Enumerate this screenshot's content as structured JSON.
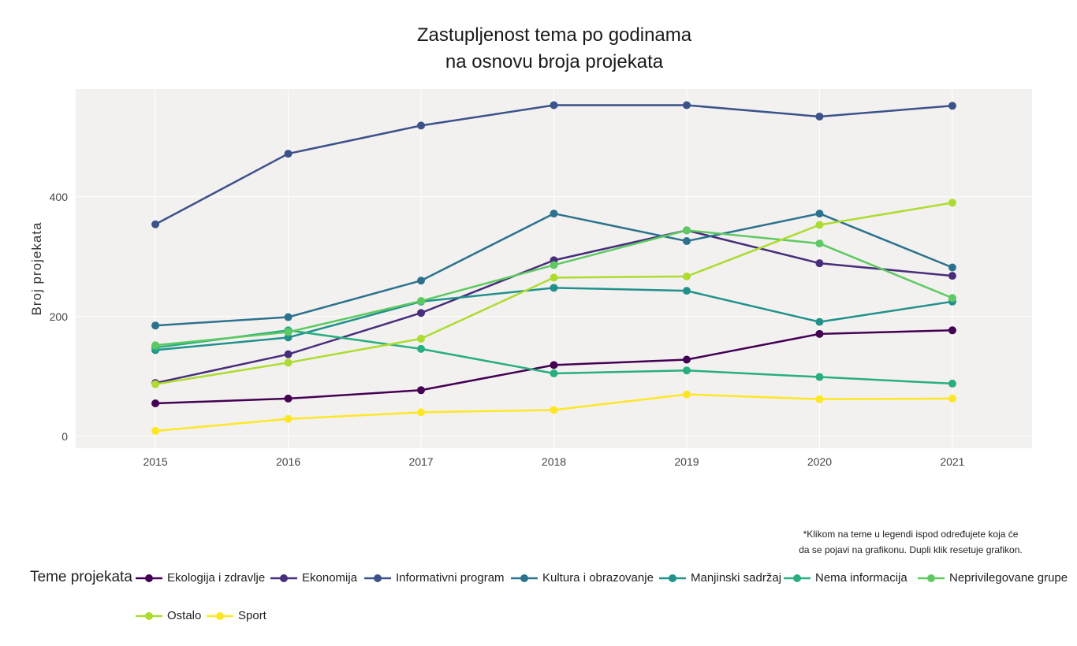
{
  "chart_data": {
    "type": "line",
    "title_lines": [
      "Zastupljenost tema po godinama",
      "na osnovu broja projekata"
    ],
    "ylabel": "Broj projekata",
    "xlabel": "",
    "x": [
      2015,
      2016,
      2017,
      2018,
      2019,
      2020,
      2021
    ],
    "xlim": [
      2014.4,
      2021.6
    ],
    "ylim": [
      -20,
      580
    ],
    "yticks": [
      0,
      200,
      400
    ],
    "grid": true,
    "plot_background": "#f3f1ef",
    "legend_title": "Teme projekata",
    "legend_position": "bottom",
    "note_lines": [
      "*Klikom na teme u legendi ispod određujete koja će",
      "da se pojavi na grafikonu. Dupli klik resetuje grafikon."
    ],
    "series": [
      {
        "name": "Ekologija i zdravlje",
        "color": "#440154",
        "values": [
          55,
          63,
          77,
          119,
          128,
          171,
          177
        ]
      },
      {
        "name": "Ekonomija",
        "color": "#472d7b",
        "values": [
          89,
          137,
          206,
          294,
          344,
          289,
          268
        ]
      },
      {
        "name": "Informativni program",
        "color": "#3b528b",
        "values": [
          354,
          472,
          519,
          553,
          553,
          534,
          552
        ]
      },
      {
        "name": "Kultura i obrazovanje",
        "color": "#2c728e",
        "values": [
          185,
          199,
          260,
          372,
          326,
          372,
          282
        ]
      },
      {
        "name": "Manjinski sadržaj",
        "color": "#21918c",
        "values": [
          144,
          165,
          225,
          248,
          243,
          191,
          225
        ]
      },
      {
        "name": "Nema informacija",
        "color": "#28ae80",
        "values": [
          148,
          177,
          146,
          105,
          110,
          99,
          88
        ]
      },
      {
        "name": "Neprivilegovane grupe",
        "color": "#5ec962",
        "values": [
          152,
          174,
          226,
          286,
          344,
          322,
          231
        ]
      },
      {
        "name": "Ostalo",
        "color": "#addc30",
        "values": [
          87,
          123,
          163,
          265,
          267,
          353,
          390
        ]
      },
      {
        "name": "Sport",
        "color": "#fde725",
        "values": [
          9,
          29,
          40,
          44,
          70,
          62,
          63
        ]
      }
    ]
  }
}
